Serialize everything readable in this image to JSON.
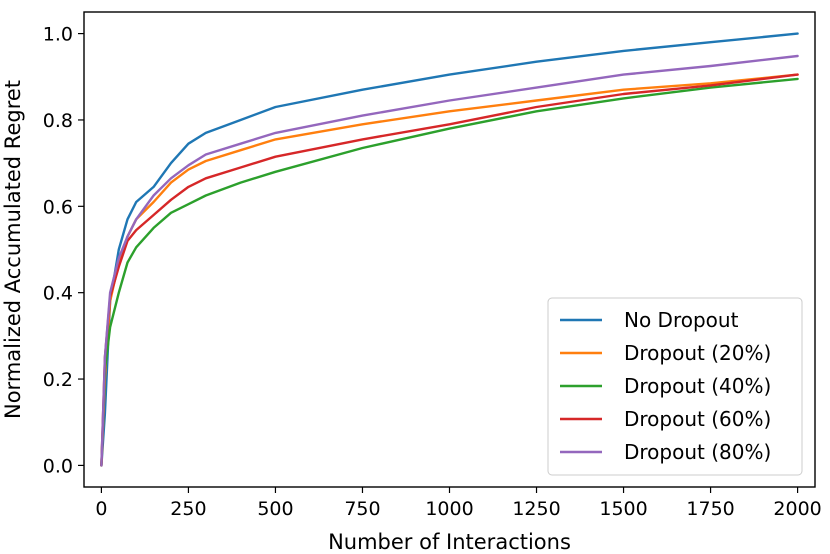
{
  "chart_data": {
    "type": "line",
    "title": "",
    "xlabel": "Number of Interactions",
    "ylabel": "Normalized Accumulated Regret",
    "xlim": [
      -50,
      2050
    ],
    "ylim": [
      -0.05,
      1.05
    ],
    "xticks": [
      0,
      250,
      500,
      750,
      1000,
      1250,
      1500,
      1750,
      2000
    ],
    "xtick_labels": [
      "0",
      "250",
      "500",
      "750",
      "1000",
      "1250",
      "1500",
      "1750",
      "2000"
    ],
    "yticks": [
      0.0,
      0.2,
      0.4,
      0.6,
      0.8,
      1.0
    ],
    "ytick_labels": [
      "0.0",
      "0.2",
      "0.4",
      "0.6",
      "0.8",
      "1.0"
    ],
    "grid": false,
    "legend_position": "bottom-right",
    "x": [
      0,
      10,
      25,
      50,
      75,
      100,
      150,
      200,
      250,
      300,
      400,
      500,
      750,
      1000,
      1250,
      1500,
      1750,
      2000
    ],
    "series": [
      {
        "name": "No Dropout",
        "color": "#1f77b4",
        "values": [
          0.0,
          0.12,
          0.38,
          0.5,
          0.57,
          0.61,
          0.645,
          0.7,
          0.745,
          0.77,
          0.8,
          0.83,
          0.87,
          0.905,
          0.935,
          0.96,
          0.98,
          1.0
        ]
      },
      {
        "name": "Dropout (20%)",
        "color": "#ff7f0e",
        "values": [
          0.0,
          0.2,
          0.38,
          0.47,
          0.53,
          0.57,
          0.61,
          0.655,
          0.685,
          0.705,
          0.73,
          0.755,
          0.79,
          0.82,
          0.845,
          0.87,
          0.885,
          0.905
        ]
      },
      {
        "name": "Dropout (40%)",
        "color": "#2ca02c",
        "values": [
          0.0,
          0.22,
          0.32,
          0.4,
          0.47,
          0.505,
          0.55,
          0.585,
          0.605,
          0.625,
          0.655,
          0.68,
          0.735,
          0.78,
          0.82,
          0.85,
          0.875,
          0.895
        ]
      },
      {
        "name": "Dropout (60%)",
        "color": "#d62728",
        "values": [
          0.0,
          0.25,
          0.39,
          0.46,
          0.52,
          0.545,
          0.58,
          0.615,
          0.645,
          0.665,
          0.69,
          0.715,
          0.755,
          0.79,
          0.83,
          0.86,
          0.88,
          0.905
        ]
      },
      {
        "name": "Dropout (80%)",
        "color": "#9467bd",
        "values": [
          0.0,
          0.25,
          0.4,
          0.48,
          0.53,
          0.57,
          0.625,
          0.665,
          0.695,
          0.72,
          0.745,
          0.77,
          0.81,
          0.845,
          0.875,
          0.905,
          0.925,
          0.948
        ]
      }
    ]
  }
}
